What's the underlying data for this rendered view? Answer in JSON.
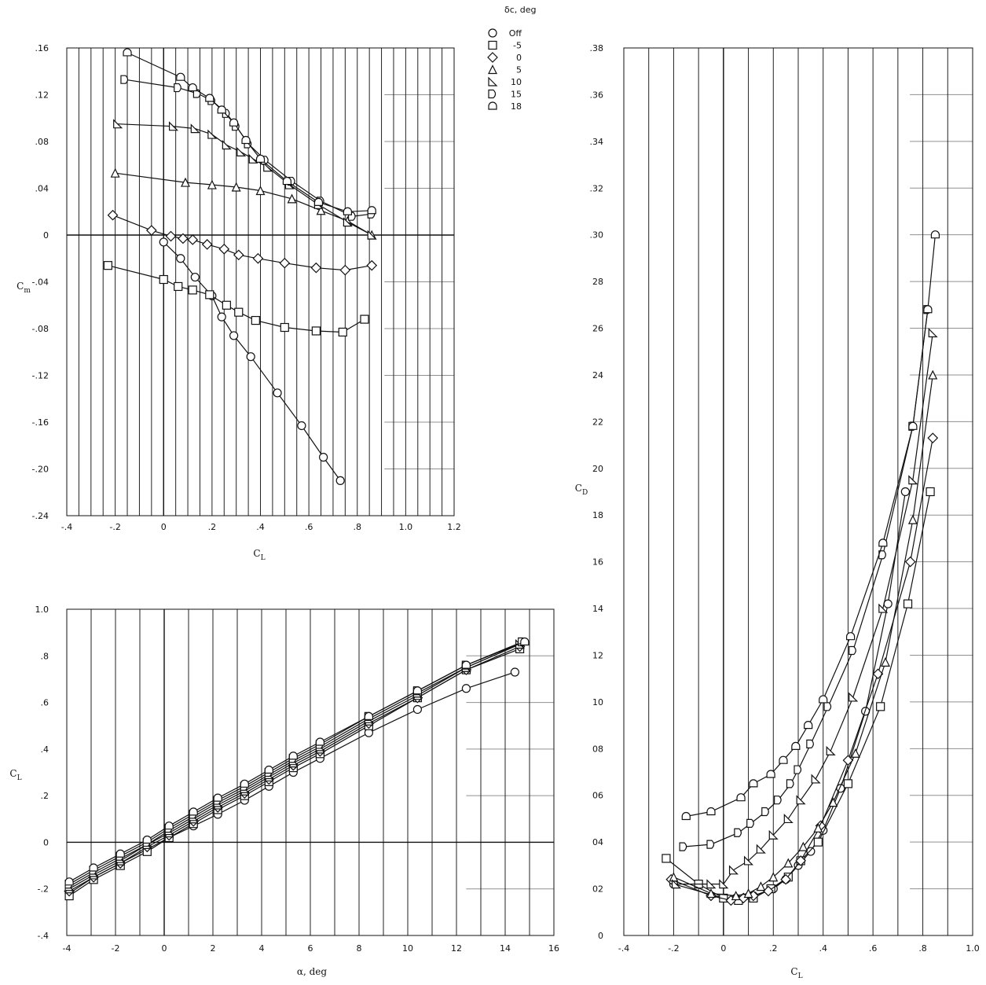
{
  "legend": {
    "title": "δc, deg",
    "entries": [
      {
        "label": "Off",
        "marker": "circle"
      },
      {
        "label": "-5",
        "marker": "square"
      },
      {
        "label": "0",
        "marker": "diamond"
      },
      {
        "label": "5",
        "marker": "triangle"
      },
      {
        "label": "10",
        "marker": "right-triangle"
      },
      {
        "label": "15",
        "marker": "flag-right"
      },
      {
        "label": "18",
        "marker": "half-circle"
      }
    ]
  },
  "chart_data": [
    {
      "id": "cm",
      "type": "line",
      "xlabel": "CL",
      "ylabel": "Cm",
      "xlim": [
        -0.4,
        1.2
      ],
      "ylim": [
        -0.24,
        0.16
      ],
      "xticks": [
        "-.4",
        "-.2",
        "0",
        ".2",
        ".4",
        ".6",
        ".8",
        "1.0",
        "1.2"
      ],
      "yticks": [
        "-.24",
        "-.20",
        "-.16",
        "-.12",
        "-.08",
        "-.04",
        "0",
        ".04",
        ".08",
        ".12",
        ".16"
      ],
      "series": [
        {
          "name": "Off",
          "x": [
            0.0,
            0.07,
            0.13,
            0.2,
            0.24,
            0.29,
            0.36,
            0.47,
            0.57,
            0.66,
            0.73
          ],
          "y": [
            -0.006,
            -0.02,
            -0.036,
            -0.052,
            -0.07,
            -0.086,
            -0.104,
            -0.135,
            -0.163,
            -0.19,
            -0.21
          ]
        },
        {
          "name": "-5",
          "x": [
            -0.23,
            0.0,
            0.06,
            0.12,
            0.19,
            0.26,
            0.31,
            0.38,
            0.5,
            0.63,
            0.74,
            0.83
          ],
          "y": [
            -0.026,
            -0.038,
            -0.044,
            -0.047,
            -0.051,
            -0.06,
            -0.066,
            -0.073,
            -0.079,
            -0.082,
            -0.083,
            -0.072
          ]
        },
        {
          "name": "0",
          "x": [
            -0.21,
            -0.05,
            0.03,
            0.08,
            0.12,
            0.18,
            0.25,
            0.31,
            0.39,
            0.5,
            0.63,
            0.75,
            0.86
          ],
          "y": [
            0.017,
            0.004,
            -0.001,
            -0.003,
            -0.004,
            -0.008,
            -0.012,
            -0.017,
            -0.02,
            -0.024,
            -0.028,
            -0.03,
            -0.026
          ]
        },
        {
          "name": "5",
          "x": [
            -0.2,
            0.09,
            0.2,
            0.3,
            0.4,
            0.53,
            0.65,
            0.76,
            0.86
          ],
          "y": [
            0.053,
            0.045,
            0.043,
            0.041,
            0.038,
            0.031,
            0.021,
            0.012,
            0.0
          ]
        },
        {
          "name": "10",
          "x": [
            -0.19,
            0.04,
            0.13,
            0.2,
            0.26,
            0.32,
            0.37,
            0.43,
            0.52,
            0.64,
            0.76,
            0.86
          ],
          "y": [
            0.095,
            0.093,
            0.091,
            0.086,
            0.077,
            0.071,
            0.065,
            0.058,
            0.043,
            0.026,
            0.011,
            0.0
          ]
        },
        {
          "name": "15",
          "x": [
            -0.16,
            0.06,
            0.14,
            0.2,
            0.26,
            0.3,
            0.35,
            0.42,
            0.53,
            0.65,
            0.78,
            0.86
          ],
          "y": [
            0.133,
            0.126,
            0.121,
            0.115,
            0.104,
            0.093,
            0.078,
            0.064,
            0.046,
            0.029,
            0.016,
            0.018
          ]
        },
        {
          "name": "18",
          "x": [
            -0.15,
            0.07,
            0.12,
            0.19,
            0.24,
            0.29,
            0.34,
            0.4,
            0.51,
            0.64,
            0.76,
            0.86
          ],
          "y": [
            0.156,
            0.135,
            0.126,
            0.117,
            0.107,
            0.096,
            0.081,
            0.065,
            0.046,
            0.028,
            0.02,
            0.021
          ]
        }
      ]
    },
    {
      "id": "cl",
      "type": "line",
      "xlabel": "α, deg",
      "ylabel": "CL",
      "xlim": [
        -4,
        16
      ],
      "ylim": [
        -0.4,
        1.0
      ],
      "xticks": [
        "-4",
        "-2",
        "0",
        "2",
        "4",
        "6",
        "8",
        "10",
        "12",
        "14",
        "16"
      ],
      "yticks": [
        "-.4",
        "-.2",
        "0",
        ".2",
        ".4",
        ".6",
        ".8",
        "1.0"
      ],
      "series": [
        {
          "name": "Off",
          "x": [
            -3.9,
            -2.9,
            -1.8,
            -0.7,
            0.2,
            1.2,
            2.2,
            3.3,
            4.3,
            5.3,
            6.4,
            8.4,
            10.4,
            12.4,
            14.4
          ],
          "y": [
            -0.22,
            -0.15,
            -0.09,
            -0.03,
            0.02,
            0.07,
            0.12,
            0.18,
            0.24,
            0.3,
            0.36,
            0.47,
            0.57,
            0.66,
            0.73
          ]
        },
        {
          "name": "-5",
          "x": [
            -3.9,
            -2.9,
            -1.8,
            -0.7,
            0.2,
            1.2,
            2.2,
            3.3,
            4.3,
            5.3,
            6.4,
            8.4,
            10.4,
            12.4,
            14.6
          ],
          "y": [
            -0.23,
            -0.16,
            -0.1,
            -0.04,
            0.02,
            0.08,
            0.14,
            0.2,
            0.26,
            0.32,
            0.38,
            0.5,
            0.62,
            0.74,
            0.83
          ]
        },
        {
          "name": "0",
          "x": [
            -3.9,
            -2.9,
            -1.8,
            -0.7,
            0.2,
            1.2,
            2.2,
            3.3,
            4.3,
            5.3,
            6.4,
            8.4,
            10.4,
            12.4,
            14.6
          ],
          "y": [
            -0.21,
            -0.15,
            -0.09,
            -0.02,
            0.03,
            0.09,
            0.15,
            0.21,
            0.27,
            0.33,
            0.39,
            0.51,
            0.62,
            0.74,
            0.84
          ]
        },
        {
          "name": "5",
          "x": [
            -3.9,
            -2.9,
            -1.8,
            -0.7,
            0.2,
            1.2,
            2.2,
            3.3,
            4.3,
            5.3,
            6.4,
            8.4,
            10.4,
            12.4,
            14.6
          ],
          "y": [
            -0.2,
            -0.14,
            -0.08,
            -0.01,
            0.04,
            0.1,
            0.16,
            0.22,
            0.28,
            0.34,
            0.4,
            0.52,
            0.63,
            0.75,
            0.85
          ]
        },
        {
          "name": "10",
          "x": [
            -3.9,
            -2.9,
            -1.8,
            -0.7,
            0.2,
            1.2,
            2.2,
            3.3,
            4.3,
            5.3,
            6.4,
            8.4,
            10.4,
            12.4,
            14.6
          ],
          "y": [
            -0.19,
            -0.13,
            -0.07,
            -0.01,
            0.05,
            0.11,
            0.17,
            0.23,
            0.29,
            0.35,
            0.41,
            0.53,
            0.64,
            0.75,
            0.85
          ]
        },
        {
          "name": "15",
          "x": [
            -3.9,
            -2.9,
            -1.8,
            -0.7,
            0.2,
            1.2,
            2.2,
            3.3,
            4.3,
            5.3,
            6.4,
            8.4,
            10.4,
            12.4,
            14.7
          ],
          "y": [
            -0.18,
            -0.12,
            -0.06,
            0.0,
            0.06,
            0.12,
            0.18,
            0.24,
            0.3,
            0.36,
            0.42,
            0.54,
            0.65,
            0.76,
            0.86
          ]
        },
        {
          "name": "18",
          "x": [
            -3.9,
            -2.9,
            -1.8,
            -0.7,
            0.2,
            1.2,
            2.2,
            3.3,
            4.3,
            5.3,
            6.4,
            8.4,
            10.4,
            12.4,
            14.8
          ],
          "y": [
            -0.17,
            -0.11,
            -0.05,
            0.01,
            0.07,
            0.13,
            0.19,
            0.25,
            0.31,
            0.37,
            0.43,
            0.54,
            0.65,
            0.76,
            0.86
          ]
        }
      ]
    },
    {
      "id": "cd",
      "type": "line",
      "xlabel": "CL",
      "ylabel": "CD",
      "xlim": [
        -0.4,
        1.0
      ],
      "ylim": [
        0,
        0.38
      ],
      "xticks": [
        "-.4",
        "-.2",
        "0",
        ".2",
        ".4",
        ".6",
        ".8",
        "1.0"
      ],
      "yticks": [
        "0",
        ".02",
        ".04",
        ".06",
        ".08",
        ".10",
        ".12",
        ".14",
        ".16",
        ".18",
        ".20",
        ".22",
        ".24",
        ".26",
        ".28",
        ".30",
        ".32",
        ".34",
        ".36",
        ".38"
      ],
      "ytick_text": [
        "0",
        "02",
        "04",
        "06",
        "08",
        "10",
        "12",
        "14",
        "16",
        "18",
        "20",
        "22",
        "24",
        "26",
        "28",
        ".30",
        ".32",
        ".34",
        ".36",
        ".38"
      ],
      "series": [
        {
          "name": "Off",
          "x": [
            -0.2,
            0.0,
            0.05,
            0.12,
            0.2,
            0.25,
            0.3,
            0.35,
            0.4,
            0.47,
            0.57,
            0.66,
            0.73
          ],
          "y": [
            0.022,
            0.016,
            0.016,
            0.017,
            0.02,
            0.024,
            0.03,
            0.036,
            0.045,
            0.063,
            0.096,
            0.142,
            0.19
          ]
        },
        {
          "name": "-5",
          "x": [
            -0.23,
            -0.1,
            0.0,
            0.06,
            0.12,
            0.19,
            0.26,
            0.31,
            0.38,
            0.5,
            0.63,
            0.74,
            0.83
          ],
          "y": [
            0.033,
            0.022,
            0.016,
            0.015,
            0.016,
            0.02,
            0.025,
            0.032,
            0.04,
            0.065,
            0.098,
            0.142,
            0.19
          ]
        },
        {
          "name": "0",
          "x": [
            -0.21,
            -0.05,
            0.03,
            0.08,
            0.12,
            0.18,
            0.25,
            0.31,
            0.39,
            0.5,
            0.62,
            0.75,
            0.84
          ],
          "y": [
            0.024,
            0.017,
            0.015,
            0.016,
            0.017,
            0.019,
            0.024,
            0.032,
            0.047,
            0.075,
            0.112,
            0.16,
            0.213
          ]
        },
        {
          "name": "5",
          "x": [
            -0.2,
            -0.05,
            0.05,
            0.1,
            0.15,
            0.2,
            0.26,
            0.32,
            0.38,
            0.44,
            0.53,
            0.65,
            0.76,
            0.84
          ],
          "y": [
            0.025,
            0.018,
            0.017,
            0.018,
            0.021,
            0.025,
            0.031,
            0.038,
            0.046,
            0.057,
            0.078,
            0.117,
            0.178,
            0.24
          ]
        },
        {
          "name": "10",
          "x": [
            -0.19,
            -0.05,
            0.0,
            0.04,
            0.1,
            0.15,
            0.2,
            0.26,
            0.31,
            0.37,
            0.43,
            0.52,
            0.64,
            0.76,
            0.84
          ],
          "y": [
            0.022,
            0.022,
            0.022,
            0.028,
            0.032,
            0.037,
            0.043,
            0.05,
            0.058,
            0.067,
            0.079,
            0.102,
            0.14,
            0.195,
            0.258
          ]
        },
        {
          "name": "15",
          "x": [
            -0.16,
            -0.05,
            0.06,
            0.11,
            0.17,
            0.22,
            0.27,
            0.3,
            0.35,
            0.42,
            0.52,
            0.64,
            0.76,
            0.82
          ],
          "y": [
            0.038,
            0.039,
            0.044,
            0.048,
            0.053,
            0.058,
            0.065,
            0.071,
            0.082,
            0.098,
            0.122,
            0.163,
            0.218,
            0.268
          ]
        },
        {
          "name": "18",
          "x": [
            -0.15,
            -0.05,
            0.07,
            0.12,
            0.19,
            0.24,
            0.29,
            0.34,
            0.4,
            0.51,
            0.64,
            0.76,
            0.82,
            0.85
          ],
          "y": [
            0.051,
            0.053,
            0.059,
            0.065,
            0.069,
            0.075,
            0.081,
            0.09,
            0.101,
            0.128,
            0.168,
            0.218,
            0.268,
            0.3
          ]
        }
      ]
    }
  ]
}
